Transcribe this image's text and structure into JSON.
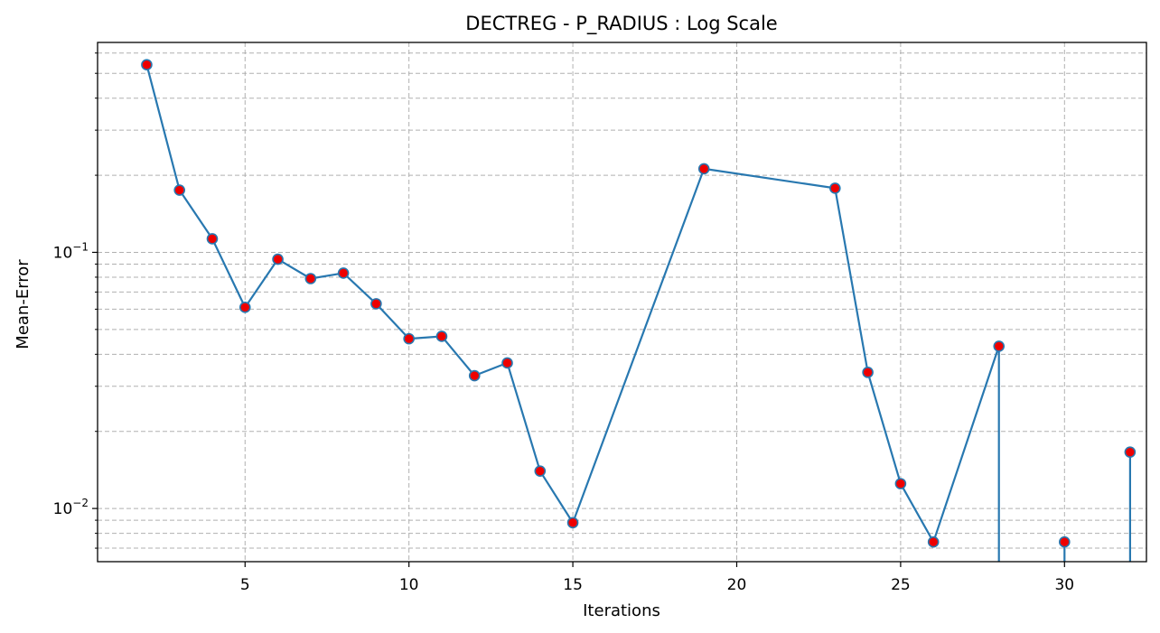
{
  "chart_data": {
    "type": "line",
    "title": "DECTREG - P_RADIUS : Log Scale",
    "xlabel": "Iterations",
    "ylabel": "Mean-Error",
    "xlim": [
      0.5,
      32.5
    ],
    "ylim": [
      0.0062,
      0.66
    ],
    "yscale": "log",
    "grid": true,
    "x_ticks": [
      5,
      10,
      15,
      20,
      25,
      30
    ],
    "y_ticks": [
      {
        "value": 0.01,
        "base": "10",
        "exp": "−2"
      },
      {
        "value": 0.1,
        "base": "10",
        "exp": "−1"
      }
    ],
    "y_minor_ticks": [
      0.007,
      0.008,
      0.009,
      0.02,
      0.03,
      0.04,
      0.05,
      0.06,
      0.07,
      0.08,
      0.09,
      0.2,
      0.3,
      0.4,
      0.5,
      0.6
    ],
    "series": [
      {
        "name": "Mean-Error",
        "line_color": "#2878b0",
        "marker_color": "#ee0000",
        "x": [
          2,
          3,
          4,
          5,
          6,
          7,
          8,
          9,
          10,
          11,
          12,
          13,
          14,
          15,
          19,
          23,
          24,
          25,
          26,
          28,
          30,
          32
        ],
        "values": [
          0.54,
          0.175,
          0.113,
          0.061,
          0.094,
          0.079,
          0.083,
          0.063,
          0.046,
          0.047,
          0.033,
          0.037,
          0.014,
          0.0088,
          0.212,
          0.178,
          0.034,
          0.0125,
          0.0074,
          0.043,
          0.0074,
          0.0166
        ],
        "segments": [
          [
            [
              2,
              0.54
            ],
            [
              3,
              0.175
            ],
            [
              4,
              0.113
            ],
            [
              5,
              0.061
            ],
            [
              6,
              0.094
            ],
            [
              7,
              0.079
            ],
            [
              8,
              0.083
            ],
            [
              9,
              0.063
            ],
            [
              10,
              0.046
            ],
            [
              11,
              0.047
            ],
            [
              12,
              0.033
            ],
            [
              13,
              0.037
            ],
            [
              14,
              0.014
            ],
            [
              15,
              0.0088
            ],
            [
              19,
              0.212
            ],
            [
              23,
              0.178
            ],
            [
              24,
              0.034
            ],
            [
              25,
              0.0125
            ],
            [
              26,
              0.0074
            ],
            [
              28,
              0.043
            ]
          ],
          [
            [
              28,
              0.043
            ],
            [
              28,
              0.0062
            ]
          ],
          [
            [
              30,
              0.0074
            ],
            [
              30,
              0.0062
            ]
          ],
          [
            [
              32,
              0.0166
            ],
            [
              32,
              0.0062
            ]
          ]
        ]
      }
    ]
  }
}
